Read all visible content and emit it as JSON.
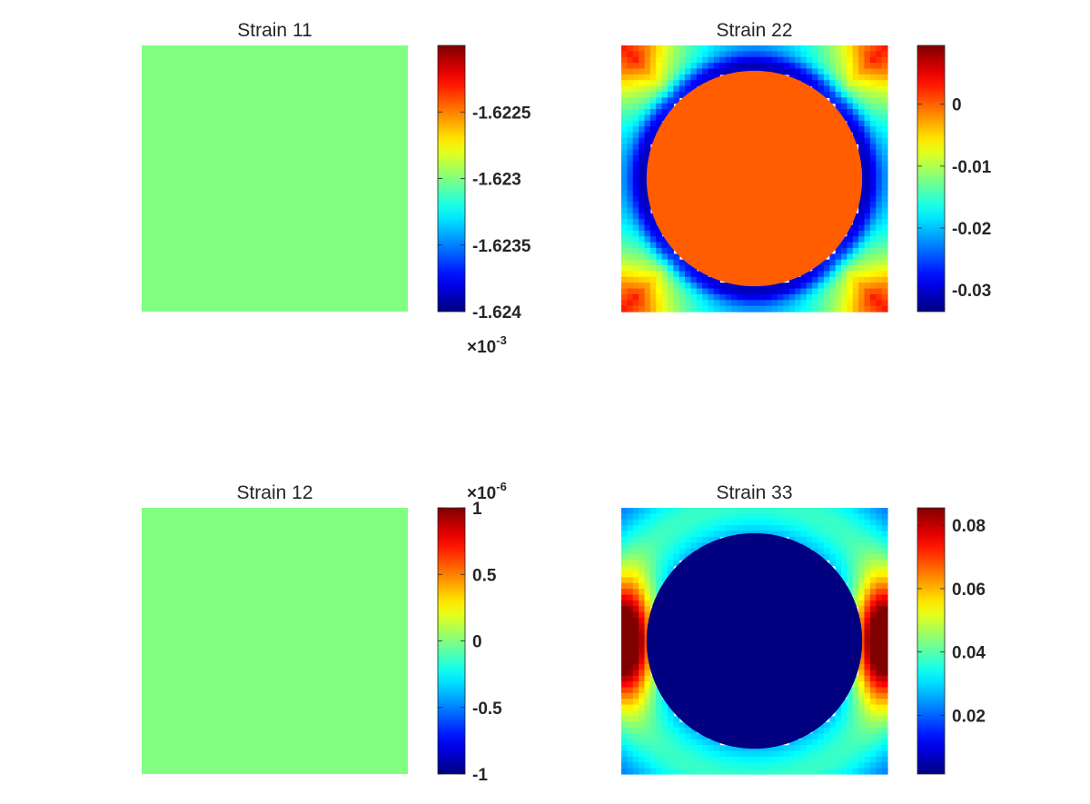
{
  "chart_data": [
    {
      "type": "heatmap",
      "title": "Strain 11",
      "colormap": "jet",
      "pattern": "uniform",
      "uniform_level": 0.5,
      "clim": [
        -1.624,
        -1.622
      ],
      "colorbar": {
        "ticks": [
          -1.624,
          -1.6235,
          -1.623,
          -1.6225
        ],
        "tick_labels": [
          "-1.624",
          "-1.6235",
          "-1.623",
          "-1.6225"
        ],
        "multiplier": "-3"
      }
    },
    {
      "type": "heatmap",
      "title": "Strain 22",
      "colormap": "jet",
      "pattern": "circle-inclusion",
      "inclusion_value": 0.0002,
      "clim": [
        -0.0335,
        0.0095
      ],
      "colorbar": {
        "ticks": [
          -0.03,
          -0.02,
          -0.01,
          0
        ],
        "tick_labels": [
          "-0.03",
          "-0.02",
          "-0.01",
          "0"
        ],
        "multiplier": ""
      }
    },
    {
      "type": "heatmap",
      "title": "Strain 12",
      "colormap": "jet",
      "pattern": "uniform",
      "uniform_level": 0.5,
      "clim": [
        -1,
        1
      ],
      "colorbar": {
        "ticks": [
          -1,
          -0.5,
          0,
          0.5,
          1
        ],
        "tick_labels": [
          "-1",
          "-0.5",
          "0",
          "0.5",
          "1"
        ],
        "multiplier": "-6"
      }
    },
    {
      "type": "heatmap",
      "title": "Strain 33",
      "colormap": "jet",
      "pattern": "circle-inclusion",
      "inclusion_value": 0.0015,
      "clim": [
        0.0015,
        0.0855
      ],
      "colorbar": {
        "ticks": [
          0.02,
          0.04,
          0.06,
          0.08
        ],
        "tick_labels": [
          "0.02",
          "0.04",
          "0.06",
          "0.08"
        ],
        "multiplier": ""
      }
    }
  ]
}
